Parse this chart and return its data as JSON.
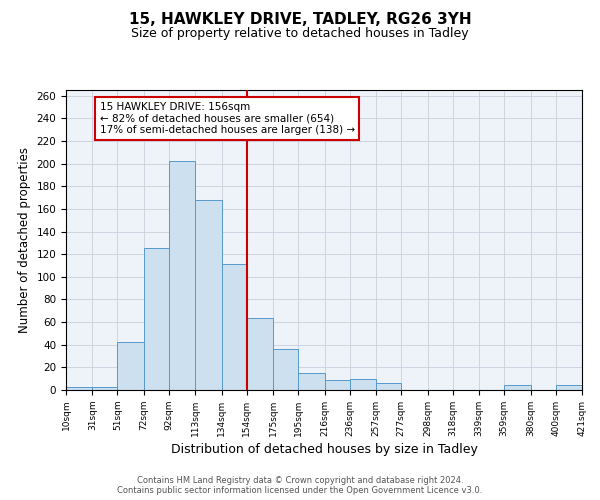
{
  "title": "15, HAWKLEY DRIVE, TADLEY, RG26 3YH",
  "subtitle": "Size of property relative to detached houses in Tadley",
  "xlabel": "Distribution of detached houses by size in Tadley",
  "ylabel": "Number of detached properties",
  "bar_left_edges": [
    10,
    31,
    51,
    72,
    92,
    113,
    134,
    154,
    175,
    195,
    216,
    236,
    257,
    277,
    298,
    318,
    339,
    359,
    380,
    400
  ],
  "bar_widths": [
    21,
    20,
    21,
    20,
    21,
    21,
    20,
    21,
    20,
    21,
    20,
    21,
    20,
    21,
    20,
    21,
    20,
    21,
    20,
    21
  ],
  "bar_heights": [
    3,
    3,
    42,
    125,
    202,
    168,
    111,
    64,
    36,
    15,
    9,
    10,
    6,
    0,
    0,
    0,
    0,
    4,
    0,
    4
  ],
  "bar_facecolor": "#cce0f0",
  "bar_edgecolor": "#5599cc",
  "tick_labels": [
    "10sqm",
    "31sqm",
    "51sqm",
    "72sqm",
    "92sqm",
    "113sqm",
    "134sqm",
    "154sqm",
    "175sqm",
    "195sqm",
    "216sqm",
    "236sqm",
    "257sqm",
    "277sqm",
    "298sqm",
    "318sqm",
    "339sqm",
    "359sqm",
    "380sqm",
    "400sqm",
    "421sqm"
  ],
  "vline_x": 154,
  "vline_color": "#cc0000",
  "ylim": [
    0,
    265
  ],
  "yticks": [
    0,
    20,
    40,
    60,
    80,
    100,
    120,
    140,
    160,
    180,
    200,
    220,
    240,
    260
  ],
  "annotation_title": "15 HAWKLEY DRIVE: 156sqm",
  "annotation_line1": "← 82% of detached houses are smaller (654)",
  "annotation_line2": "17% of semi-detached houses are larger (138) →",
  "footer_line1": "Contains HM Land Registry data © Crown copyright and database right 2024.",
  "footer_line2": "Contains public sector information licensed under the Open Government Licence v3.0.",
  "background_color": "#eef3f9",
  "grid_color": "#c8d0dc",
  "title_fontsize": 11,
  "subtitle_fontsize": 9,
  "ylabel_fontsize": 8.5,
  "xlabel_fontsize": 9,
  "tick_fontsize": 6.5,
  "ann_fontsize": 7.5,
  "footer_fontsize": 6
}
